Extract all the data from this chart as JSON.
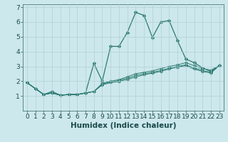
{
  "xlabel": "Humidex (Indice chaleur)",
  "background_color": "#cde8ec",
  "grid_color": "#b0d0d5",
  "line_color": "#2a7a6f",
  "xlim": [
    -0.5,
    23.5
  ],
  "ylim": [
    0,
    7.2
  ],
  "xticks": [
    0,
    1,
    2,
    3,
    4,
    5,
    6,
    7,
    8,
    9,
    10,
    11,
    12,
    13,
    14,
    15,
    16,
    17,
    18,
    19,
    20,
    21,
    22,
    23
  ],
  "yticks": [
    1,
    2,
    3,
    4,
    5,
    6,
    7
  ],
  "series": [
    [
      1.9,
      1.5,
      1.1,
      1.3,
      1.05,
      1.1,
      1.1,
      1.2,
      3.2,
      2.0,
      4.35,
      4.35,
      5.3,
      6.65,
      6.45,
      4.95,
      6.0,
      6.1,
      4.75,
      3.5,
      3.25,
      2.9,
      2.65,
      3.05
    ],
    [
      1.9,
      1.5,
      1.1,
      1.2,
      1.05,
      1.1,
      1.1,
      1.2,
      1.3,
      1.85,
      2.0,
      2.1,
      2.3,
      2.5,
      2.6,
      2.7,
      2.85,
      3.0,
      3.1,
      3.25,
      3.05,
      2.85,
      2.75,
      3.05
    ],
    [
      1.9,
      1.5,
      1.1,
      1.2,
      1.05,
      1.1,
      1.1,
      1.2,
      1.3,
      1.8,
      1.95,
      2.05,
      2.2,
      2.38,
      2.5,
      2.6,
      2.72,
      2.88,
      3.0,
      3.1,
      2.9,
      2.72,
      2.6,
      3.05
    ],
    [
      1.9,
      1.5,
      1.1,
      1.2,
      1.05,
      1.1,
      1.1,
      1.2,
      1.3,
      1.75,
      1.9,
      1.98,
      2.12,
      2.28,
      2.43,
      2.54,
      2.66,
      2.82,
      2.95,
      3.05,
      2.82,
      2.66,
      2.55,
      3.05
    ]
  ],
  "tick_fontsize": 6.5,
  "xlabel_fontsize": 7.5,
  "marker_size_main": 2.5,
  "marker_size_other": 2.0,
  "linewidth_main": 0.9,
  "linewidth_other": 0.7
}
